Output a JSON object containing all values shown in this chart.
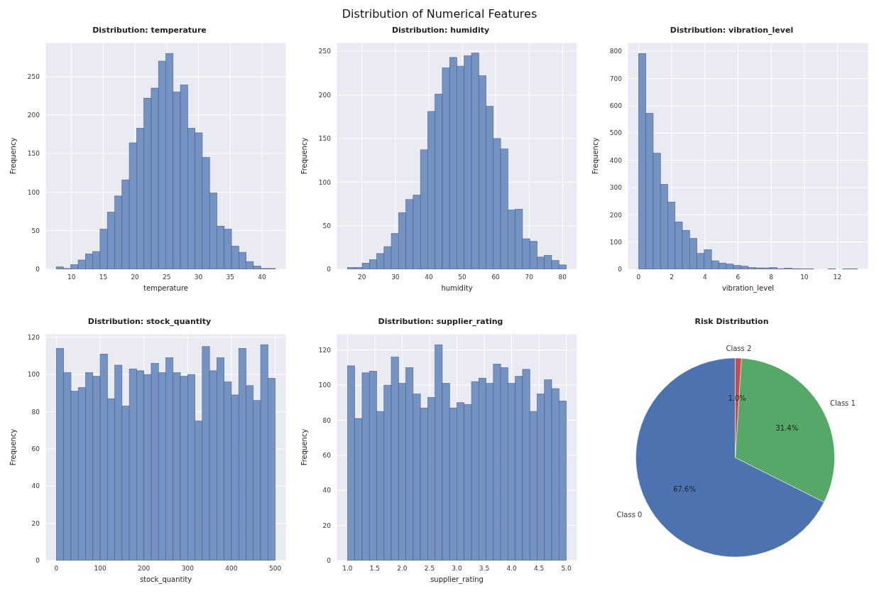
{
  "chart_data": [
    {
      "type": "histogram",
      "title": "Distribution: temperature",
      "xlabel": "temperature",
      "ylabel": "Frequency",
      "annotations": [
        "Distribution of Numerical Features"
      ],
      "color": "#7493c3",
      "grid": true,
      "bins": [
        7.6,
        8.75,
        9.9,
        11.05,
        12.2,
        13.35,
        14.5,
        15.65,
        16.8,
        17.95,
        19.1,
        20.25,
        21.4,
        22.55,
        23.7,
        24.85,
        26,
        27.15,
        28.3,
        29.45,
        30.6,
        31.75,
        32.9,
        34.05,
        35.2,
        36.35,
        37.5,
        38.65,
        39.8,
        40.95,
        42.1
      ],
      "values": [
        3,
        1,
        6,
        12,
        20,
        23,
        52,
        74,
        95,
        116,
        164,
        183,
        222,
        235,
        270,
        280,
        230,
        239,
        183,
        177,
        145,
        99,
        56,
        52,
        30,
        22,
        10,
        4,
        1,
        1
      ],
      "xlim": [
        5.9,
        43.8
      ],
      "xticks": [
        10,
        15,
        20,
        25,
        30,
        35,
        40
      ],
      "ylim": [
        0,
        294
      ],
      "yticks": [
        0,
        50,
        100,
        150,
        200,
        250
      ]
    },
    {
      "type": "histogram",
      "title": "Distribution: humidity",
      "xlabel": "humidity",
      "ylabel": "Frequency",
      "color": "#7493c3",
      "grid": true,
      "bins": [
        15.7,
        17.88,
        20.06,
        22.24,
        24.42,
        26.6,
        28.78,
        30.96,
        33.14,
        35.32,
        37.5,
        39.68,
        41.86,
        44.04,
        46.22,
        48.4,
        50.58,
        52.76,
        54.94,
        57.12,
        59.3,
        61.48,
        63.66,
        65.84,
        68.02,
        70.2,
        72.38,
        74.56,
        76.74,
        78.92,
        81.1
      ],
      "values": [
        2,
        2,
        7,
        11,
        18,
        26,
        41,
        65,
        80,
        85,
        137,
        181,
        201,
        231,
        243,
        233,
        245,
        248,
        222,
        187,
        150,
        138,
        68,
        69,
        35,
        32,
        14,
        16,
        10,
        5
      ],
      "xlim": [
        12.4,
        84.4
      ],
      "xticks": [
        20,
        30,
        40,
        50,
        60,
        70,
        80
      ],
      "ylim": [
        0,
        260
      ],
      "yticks": [
        0,
        50,
        100,
        150,
        200,
        250
      ]
    },
    {
      "type": "histogram",
      "title": "Distribution: vibration_level",
      "xlabel": "vibration_level",
      "ylabel": "Frequency",
      "color": "#7493c3",
      "grid": true,
      "bins": [
        0,
        0.44,
        0.88,
        1.32,
        1.76,
        2.2,
        2.64,
        3.08,
        3.52,
        3.96,
        4.4,
        4.84,
        5.28,
        5.72,
        6.16,
        6.6,
        7.04,
        7.48,
        7.92,
        8.36,
        8.8,
        9.24,
        9.68,
        10.12,
        10.56,
        11,
        11.44,
        11.88,
        12.32,
        12.76,
        13.2
      ],
      "values": [
        792,
        573,
        426,
        312,
        247,
        174,
        143,
        113,
        58,
        72,
        31,
        23,
        19,
        14,
        11,
        6,
        5,
        5,
        6,
        2,
        4,
        2,
        1,
        1,
        0,
        0,
        1,
        0,
        1,
        1
      ],
      "xlim": [
        -0.66,
        13.86
      ],
      "xticks": [
        0,
        2,
        4,
        6,
        8,
        10,
        12
      ],
      "ylim": [
        0,
        832
      ],
      "yticks": [
        0,
        100,
        200,
        300,
        400,
        500,
        600,
        700,
        800
      ]
    },
    {
      "type": "histogram",
      "title": "Distribution: stock_quantity",
      "xlabel": "stock_quantity",
      "ylabel": "Frequency",
      "color": "#7493c3",
      "grid": true,
      "bins": [
        0,
        16.67,
        33.33,
        50,
        66.67,
        83.33,
        100,
        116.67,
        133.33,
        150,
        166.67,
        183.33,
        200,
        216.67,
        233.33,
        250,
        266.67,
        283.33,
        300,
        316.67,
        333.33,
        350,
        366.67,
        383.33,
        400,
        416.67,
        433.33,
        450,
        466.67,
        483.33,
        500
      ],
      "values": [
        114,
        101,
        91,
        93,
        101,
        99,
        111,
        87,
        105,
        83,
        103,
        102,
        100,
        106,
        101,
        109,
        101,
        99,
        100,
        75,
        115,
        102,
        109,
        96,
        89,
        114,
        94,
        86,
        116,
        98
      ],
      "xlim": [
        -25,
        525
      ],
      "xticks": [
        0,
        100,
        200,
        300,
        400,
        500
      ],
      "ylim": [
        0,
        121.8
      ],
      "yticks": [
        0,
        20,
        40,
        60,
        80,
        100,
        120
      ]
    },
    {
      "type": "histogram",
      "title": "Distribution: supplier_rating",
      "xlabel": "supplier_rating",
      "ylabel": "Frequency",
      "color": "#7493c3",
      "grid": true,
      "bins": [
        1,
        1.133,
        1.267,
        1.4,
        1.533,
        1.667,
        1.8,
        1.933,
        2.067,
        2.2,
        2.333,
        2.467,
        2.6,
        2.733,
        2.867,
        3,
        3.133,
        3.267,
        3.4,
        3.533,
        3.667,
        3.8,
        3.933,
        4.067,
        4.2,
        4.333,
        4.467,
        4.6,
        4.733,
        4.867,
        5
      ],
      "values": [
        111,
        81,
        107,
        108,
        85,
        100,
        116,
        101,
        110,
        95,
        87,
        93,
        123,
        101,
        87,
        90,
        89,
        102,
        104,
        101,
        112,
        110,
        101,
        105,
        109,
        85,
        95,
        103,
        98,
        91
      ],
      "xlim": [
        0.8,
        5.2
      ],
      "xticks": [
        {
          "value": 1,
          "label": "1.0"
        },
        {
          "value": 1.5,
          "label": "1.5"
        },
        {
          "value": 2,
          "label": "2.0"
        },
        {
          "value": 2.5,
          "label": "2.5"
        },
        {
          "value": 3,
          "label": "3.0"
        },
        {
          "value": 3.5,
          "label": "3.5"
        },
        {
          "value": 4,
          "label": "4.0"
        },
        {
          "value": 4.5,
          "label": "4.5"
        },
        {
          "value": 5,
          "label": "5.0"
        }
      ],
      "ylim": [
        0,
        129.2
      ],
      "yticks": [
        0,
        20,
        40,
        60,
        80,
        100,
        120
      ]
    },
    {
      "type": "pie",
      "title": "Risk Distribution",
      "categories": [
        "Class 0",
        "Class 1",
        "Class 2"
      ],
      "values": [
        67.6,
        31.4,
        1.0
      ],
      "value_labels": [
        "67.6%",
        "31.4%",
        "1.0%"
      ],
      "colors": [
        "#4c72b0",
        "#55a868",
        "#c44e52"
      ]
    }
  ]
}
